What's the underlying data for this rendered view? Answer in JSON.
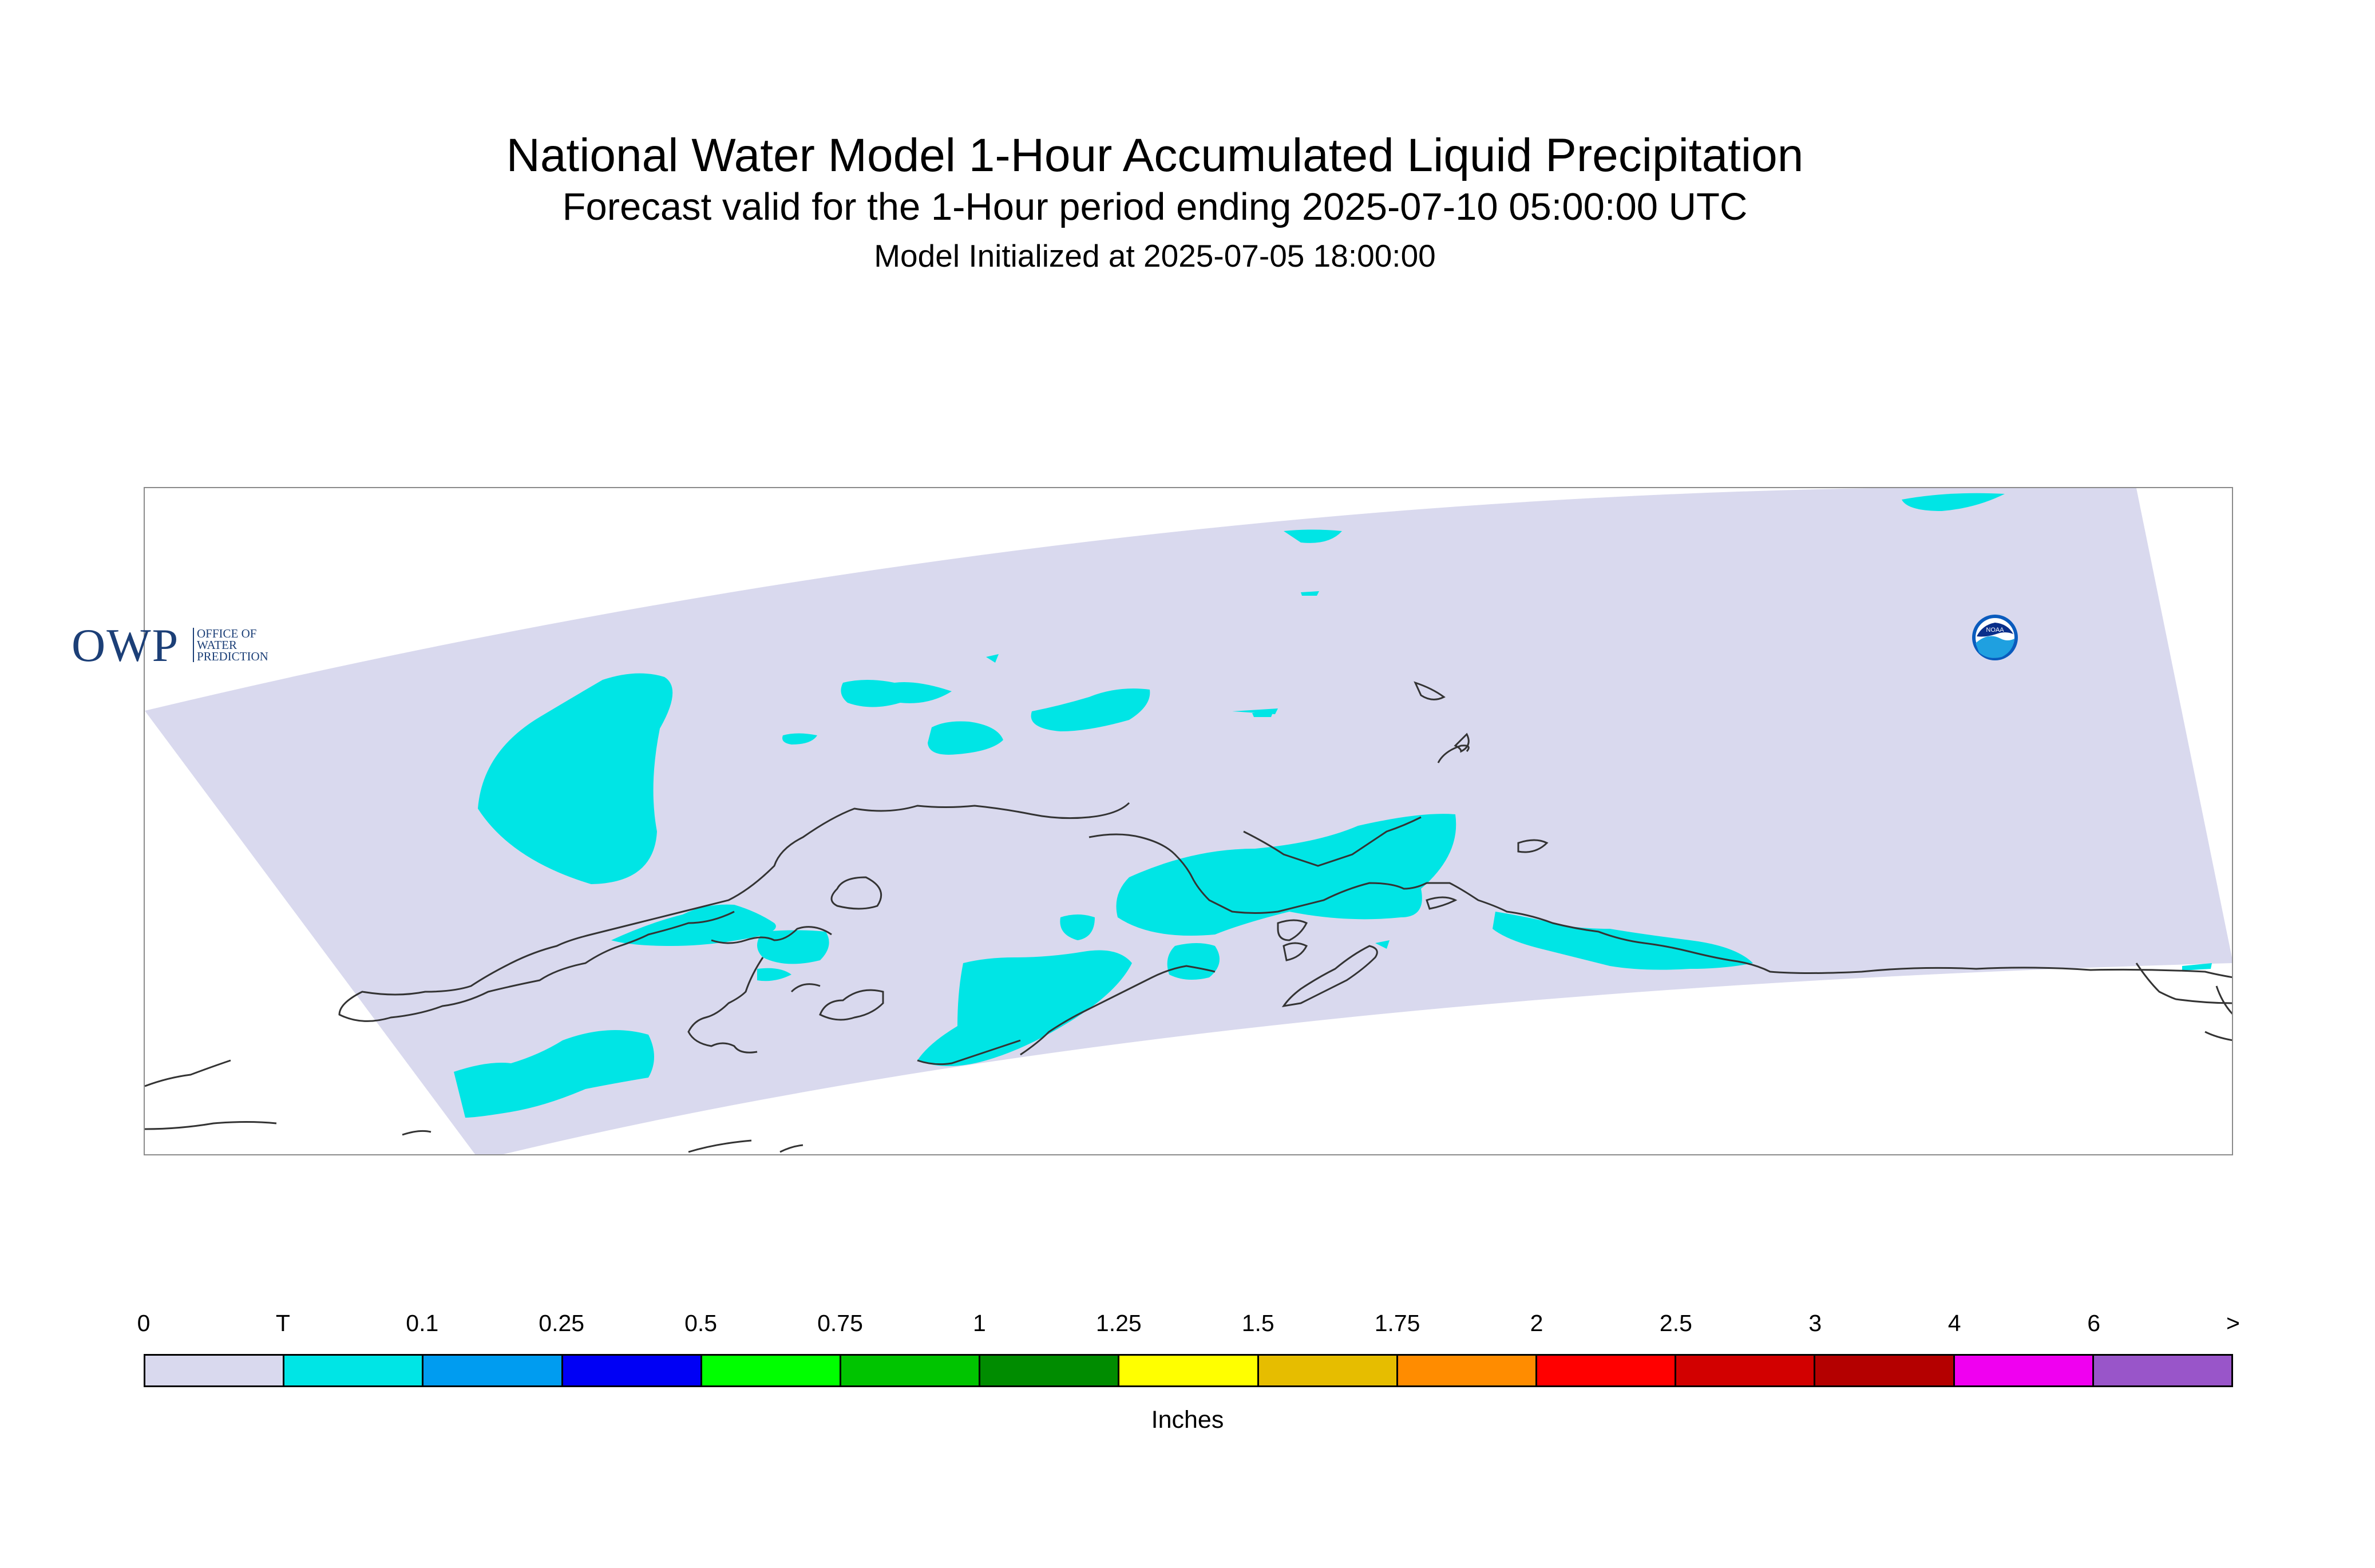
{
  "title": {
    "main": "National Water Model 1-Hour Accumulated Liquid Precipitation",
    "forecast": "Forecast valid for the 1-Hour period ending 2025-07-10 05:00:00 UTC",
    "initialized": "Model Initialized at 2025-07-05 18:00:00"
  },
  "logos": {
    "owp_mark": "OWP",
    "owp_text": "OFFICE OF\nWATER\nPREDICTION",
    "noaa_text": "NOAA"
  },
  "map": {
    "domain_color": "#d9d9ee",
    "precip_color": "#00e5e5",
    "coastline_color": "#333333",
    "precip_category": "T"
  },
  "legend": {
    "labels": [
      "0",
      "T",
      "0.1",
      "0.25",
      "0.5",
      "0.75",
      "1",
      "1.25",
      "1.5",
      "1.75",
      "2",
      "2.5",
      "3",
      "4",
      "6",
      ">"
    ],
    "colors": [
      "#d9d9ee",
      "#00e5e5",
      "#009cf0",
      "#0000f5",
      "#00ff00",
      "#00c400",
      "#008c00",
      "#ffff00",
      "#e6bd00",
      "#ff8c00",
      "#ff0000",
      "#d20000",
      "#b40000",
      "#f000f0",
      "#9955c9"
    ],
    "units": "Inches"
  }
}
